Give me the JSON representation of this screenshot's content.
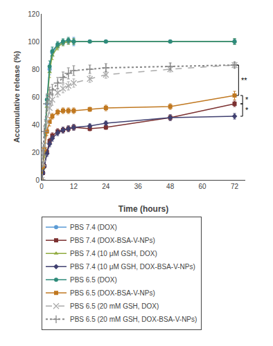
{
  "chart_data": {
    "type": "line",
    "xlabel": "Time (hours)",
    "ylabel": "Accumulative release (%)",
    "x": [
      0,
      0.5,
      1,
      2,
      3,
      4,
      6,
      8,
      10,
      12,
      18,
      24,
      48,
      72
    ],
    "xlim": [
      0,
      76
    ],
    "ylim": [
      0,
      120
    ],
    "xticks": [
      0,
      12,
      24,
      36,
      48,
      60,
      72
    ],
    "yticks": [
      0,
      20,
      40,
      60,
      80,
      100,
      120
    ],
    "grid": false,
    "legend": "bottom",
    "series": [
      {
        "name": "PBS 7.4 (DOX)",
        "color": "#5b9bd5",
        "marker": "circle",
        "line_style": "solid",
        "values": [
          0,
          8,
          20,
          55,
          80,
          92,
          97,
          99,
          100,
          100,
          100,
          100,
          100,
          100
        ],
        "yerr": [
          0,
          1.5,
          2,
          3,
          4,
          3,
          2,
          2,
          2,
          3,
          0,
          0,
          0,
          2
        ]
      },
      {
        "name": "PBS 7.4 (DOX-BSA-V-NPs)",
        "color": "#7b3030",
        "marker": "square",
        "line_style": "solid",
        "values": [
          0,
          5,
          10,
          20,
          28,
          32,
          35,
          36,
          37,
          38,
          37,
          38,
          45,
          55
        ],
        "yerr": [
          0,
          1,
          1.5,
          2,
          2,
          2,
          2,
          2,
          2,
          2,
          1.5,
          1.5,
          2,
          2
        ]
      },
      {
        "name": "PBS 7.4 (10 μM GSH, DOX)",
        "color": "#8faa3c",
        "marker": "triangle",
        "line_style": "solid",
        "values": [
          0,
          8,
          18,
          53,
          78,
          90,
          96,
          99,
          100,
          100,
          100,
          100,
          100,
          100
        ],
        "yerr": [
          0,
          1.5,
          2,
          3,
          4,
          3,
          2,
          2,
          2,
          2,
          0,
          0,
          0,
          2
        ]
      },
      {
        "name": "PBS 7.4 (10 μM GSH, DOX-BSA-V-NPs)",
        "color": "#404070",
        "marker": "diamond",
        "line_style": "solid",
        "values": [
          0,
          5,
          10,
          19,
          26,
          30,
          34,
          36,
          37,
          38,
          39,
          41,
          45,
          46
        ],
        "yerr": [
          0,
          1,
          1.5,
          2,
          2,
          2,
          2,
          2,
          2,
          2,
          1.5,
          1.5,
          2,
          2
        ]
      },
      {
        "name": "PBS 6.5 (DOX)",
        "color": "#2e8b7a",
        "marker": "circle",
        "line_style": "solid",
        "values": [
          0,
          10,
          22,
          58,
          82,
          93,
          98,
          100,
          101,
          100,
          100,
          100,
          100,
          100
        ],
        "yerr": [
          0,
          1.5,
          2,
          3,
          4,
          3,
          2,
          2,
          2,
          2,
          0,
          0,
          0,
          2
        ]
      },
      {
        "name": "PBS 6.5 (DOX-BSA-V-NPs)",
        "color": "#c07820",
        "marker": "square",
        "line_style": "solid",
        "values": [
          0,
          10,
          22,
          35,
          42,
          46,
          49,
          50,
          50,
          50,
          51,
          52,
          53,
          61
        ],
        "yerr": [
          0,
          2,
          2.5,
          3,
          3,
          2,
          2,
          2,
          2,
          2,
          1.5,
          2,
          2,
          3
        ]
      },
      {
        "name": "PBS 6.5 (20 mM GSH, DOX)",
        "color": "#aaaaaa",
        "marker": "x",
        "line_style": "dashed",
        "values": [
          0,
          12,
          25,
          42,
          52,
          58,
          63,
          66,
          68,
          70,
          73,
          76,
          80,
          83
        ],
        "yerr": [
          0,
          2,
          3,
          4,
          4,
          4,
          3,
          3,
          3,
          3,
          2.5,
          2.5,
          2,
          2
        ]
      },
      {
        "name": "PBS 6.5 (20 mM GSH, DOX-BSA-V-NPs)",
        "color": "#888888",
        "marker": "plus",
        "line_style": "dotted",
        "values": [
          0,
          18,
          35,
          55,
          62,
          65,
          70,
          74,
          77,
          79,
          80,
          81,
          82,
          83
        ],
        "yerr": [
          0,
          3,
          4,
          5,
          5,
          4,
          4,
          4,
          4,
          3.5,
          3,
          3,
          2.5,
          2
        ]
      }
    ],
    "annotations": [
      {
        "text": "**",
        "x": 73.5,
        "y1": 61,
        "y2": 83
      },
      {
        "text": "*",
        "x": 75.0,
        "y1": 55,
        "y2": 61
      },
      {
        "text": "*",
        "x": 75.0,
        "y1": 46,
        "y2": 55
      }
    ]
  }
}
